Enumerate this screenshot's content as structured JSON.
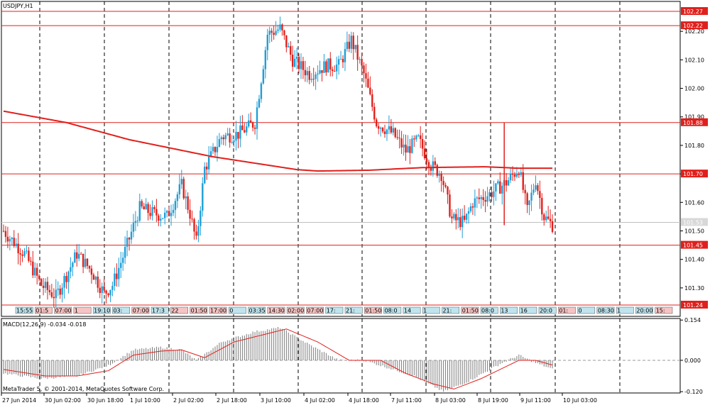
{
  "window": {
    "symbol_label": "USDJPY,H1",
    "macd_label": "MACD(12,26,9) -0.034 -0.018",
    "copyright": "MetaTrader 5, © 2001-2014, MetaQuotes Software Corp."
  },
  "colors": {
    "bull": "#1e9fd8",
    "bear": "#e0201c",
    "ma": "#e0201c",
    "level": "#e0201c",
    "grid": "#000000",
    "macd_hist": "#7a7a7a",
    "macd_signal": "#e0201c",
    "bid": "#c0c0c0"
  },
  "chart_data": [
    {
      "type": "candlestick",
      "title": "USDJPY,H1",
      "ylim": [
        101.235,
        102.295
      ],
      "price_ticks": [
        "102.20",
        "102.10",
        "102.00",
        "101.90",
        "101.80",
        "101.70",
        "101.60",
        "101.50",
        "101.40",
        "101.30"
      ],
      "price_tick_values": [
        102.2,
        102.1,
        102.0,
        101.9,
        101.8,
        101.7,
        101.6,
        101.5,
        101.4,
        101.3
      ],
      "levels": [
        {
          "value": 102.27,
          "label": "102.27"
        },
        {
          "value": 102.22,
          "label": "102.22"
        },
        {
          "value": 101.88,
          "label": "101.88"
        },
        {
          "value": 101.7,
          "label": "101.70"
        },
        {
          "value": 101.45,
          "label": "101.45"
        },
        {
          "value": 101.24,
          "label": "101.24"
        }
      ],
      "bid": {
        "value": 101.53,
        "label": "101.53"
      },
      "x_labels": [
        "27 Jun 2014",
        "30 Jun 02:00",
        "30 Jun 18:00",
        "1 Jul 10:00",
        "2 Jul 02:00",
        "2 Jul 18:00",
        "3 Jul 10:00",
        "4 Jul 02:00",
        "4 Jul 18:00",
        "7 Jul 11:00",
        "8 Jul 03:00",
        "8 Jul 19:00",
        "9 Jul 11:00",
        "10 Jul 03:00"
      ],
      "anchors": [
        [
          0,
          101.5
        ],
        [
          10,
          101.42
        ],
        [
          18,
          101.31
        ],
        [
          25,
          101.27
        ],
        [
          35,
          101.42
        ],
        [
          42,
          101.36
        ],
        [
          48,
          101.28
        ],
        [
          52,
          101.31
        ],
        [
          58,
          101.43
        ],
        [
          65,
          101.58
        ],
        [
          72,
          101.56
        ],
        [
          78,
          101.55
        ],
        [
          85,
          101.66
        ],
        [
          89,
          101.56
        ],
        [
          92,
          101.46
        ],
        [
          96,
          101.72
        ],
        [
          104,
          101.83
        ],
        [
          112,
          101.84
        ],
        [
          120,
          101.88
        ],
        [
          126,
          102.19
        ],
        [
          132,
          102.21
        ],
        [
          138,
          102.1
        ],
        [
          146,
          102.05
        ],
        [
          154,
          102.08
        ],
        [
          160,
          102.08
        ],
        [
          166,
          102.17
        ],
        [
          172,
          102.05
        ],
        [
          178,
          101.88
        ],
        [
          186,
          101.84
        ],
        [
          192,
          101.78
        ],
        [
          198,
          101.82
        ],
        [
          204,
          101.73
        ],
        [
          209,
          101.7
        ],
        [
          214,
          101.54
        ],
        [
          220,
          101.53
        ],
        [
          224,
          101.6
        ],
        [
          232,
          101.63
        ],
        [
          240,
          101.67
        ],
        [
          246,
          101.72
        ],
        [
          250,
          101.57
        ],
        [
          254,
          101.68
        ],
        [
          258,
          101.55
        ],
        [
          262,
          101.52
        ]
      ],
      "ma_points": [
        [
          0,
          101.92
        ],
        [
          30,
          101.88
        ],
        [
          60,
          101.82
        ],
        [
          100,
          101.76
        ],
        [
          140,
          101.715
        ],
        [
          150,
          101.71
        ],
        [
          175,
          101.713
        ],
        [
          200,
          101.722
        ],
        [
          230,
          101.725
        ],
        [
          245,
          101.72
        ],
        [
          262,
          101.72
        ]
      ],
      "time_markers": [
        "15:55",
        "01:5",
        "07:00",
        "1",
        "19:10",
        "03:",
        "07:00",
        "17:3",
        "22",
        "01:50",
        "17:00",
        "0",
        "03:35",
        "14:30",
        "02:00",
        "07:00",
        "17:",
        "21:",
        "01:50",
        "08:0",
        "14",
        "1",
        "21:",
        "01:50",
        "08:0",
        "13",
        "16",
        "20:0",
        "01:",
        "0",
        "08:30",
        "1",
        "20:00",
        "15:"
      ]
    },
    {
      "type": "macd",
      "title": "MACD(12,26,9) -0.034 -0.018",
      "ylim": [
        -0.125,
        0.16
      ],
      "ticks": [
        "0.154",
        "0.000",
        "-0.120"
      ],
      "tick_values": [
        0.154,
        0.0,
        -0.12
      ],
      "hist_anchors": [
        [
          0,
          -0.05
        ],
        [
          18,
          -0.07
        ],
        [
          35,
          -0.06
        ],
        [
          50,
          -0.02
        ],
        [
          62,
          0.04
        ],
        [
          75,
          0.05
        ],
        [
          85,
          0.04
        ],
        [
          92,
          0.0
        ],
        [
          104,
          0.07
        ],
        [
          120,
          0.11
        ],
        [
          132,
          0.125
        ],
        [
          146,
          0.06
        ],
        [
          160,
          0.0
        ],
        [
          172,
          0.0
        ],
        [
          184,
          -0.03
        ],
        [
          196,
          -0.06
        ],
        [
          210,
          -0.12
        ],
        [
          222,
          -0.08
        ],
        [
          238,
          -0.01
        ],
        [
          246,
          0.02
        ],
        [
          254,
          -0.01
        ],
        [
          262,
          -0.034
        ]
      ],
      "signal_anchors": [
        [
          0,
          -0.035
        ],
        [
          20,
          -0.06
        ],
        [
          35,
          -0.06
        ],
        [
          50,
          -0.04
        ],
        [
          62,
          0.02
        ],
        [
          75,
          0.035
        ],
        [
          85,
          0.04
        ],
        [
          96,
          0.01
        ],
        [
          110,
          0.07
        ],
        [
          125,
          0.1
        ],
        [
          135,
          0.12
        ],
        [
          150,
          0.07
        ],
        [
          165,
          0.0
        ],
        [
          180,
          0.0
        ],
        [
          192,
          -0.05
        ],
        [
          205,
          -0.09
        ],
        [
          215,
          -0.11
        ],
        [
          228,
          -0.07
        ],
        [
          246,
          0.0
        ],
        [
          254,
          0.0
        ],
        [
          262,
          -0.018
        ]
      ]
    }
  ]
}
